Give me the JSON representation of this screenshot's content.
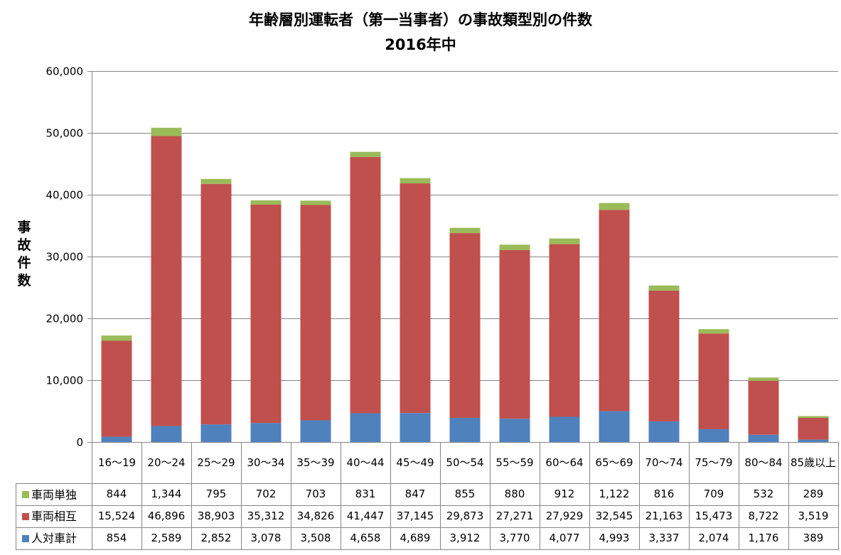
{
  "chart_data": {
    "type": "bar",
    "stacked": true,
    "title": "年齢層別運転者（第一当事者）の事故類型別の件数",
    "subtitle": "2016年中",
    "xlabel": "",
    "ylabel": "事故件数",
    "ylim": [
      0,
      60000
    ],
    "yticks": [
      "0",
      "10,000",
      "20,000",
      "30,000",
      "40,000",
      "50,000",
      "60,000"
    ],
    "grid": true,
    "legend": "data-table",
    "categories": [
      "16〜19",
      "20〜24",
      "25〜29",
      "30〜34",
      "35〜39",
      "40〜44",
      "45〜49",
      "50〜54",
      "55〜59",
      "60〜64",
      "65〜69",
      "70〜74",
      "75〜79",
      "80〜84",
      "85歳以上"
    ],
    "series": [
      {
        "name": "人対車計",
        "color": "#4f81bd",
        "values": [
          854,
          2589,
          2852,
          3078,
          3508,
          4658,
          4689,
          3912,
          3770,
          4077,
          4993,
          3337,
          2074,
          1176,
          389
        ],
        "labels": [
          "854",
          "2,589",
          "2,852",
          "3,078",
          "3,508",
          "4,658",
          "4,689",
          "3,912",
          "3,770",
          "4,077",
          "4,993",
          "3,337",
          "2,074",
          "1,176",
          "389"
        ]
      },
      {
        "name": "車両相互",
        "color": "#c0504d",
        "values": [
          15524,
          46896,
          38903,
          35312,
          34826,
          41447,
          37145,
          29873,
          27271,
          27929,
          32545,
          21163,
          15473,
          8722,
          3519
        ],
        "labels": [
          "15,524",
          "46,896",
          "38,903",
          "35,312",
          "34,826",
          "41,447",
          "37,145",
          "29,873",
          "27,271",
          "27,929",
          "32,545",
          "21,163",
          "15,473",
          "8,722",
          "3,519"
        ]
      },
      {
        "name": "車両単独",
        "color": "#9bbb59",
        "values": [
          844,
          1344,
          795,
          702,
          703,
          831,
          847,
          855,
          880,
          912,
          1122,
          816,
          709,
          532,
          289
        ],
        "labels": [
          "844",
          "1,344",
          "795",
          "702",
          "703",
          "831",
          "847",
          "855",
          "880",
          "912",
          "1,122",
          "816",
          "709",
          "532",
          "289"
        ]
      }
    ]
  }
}
